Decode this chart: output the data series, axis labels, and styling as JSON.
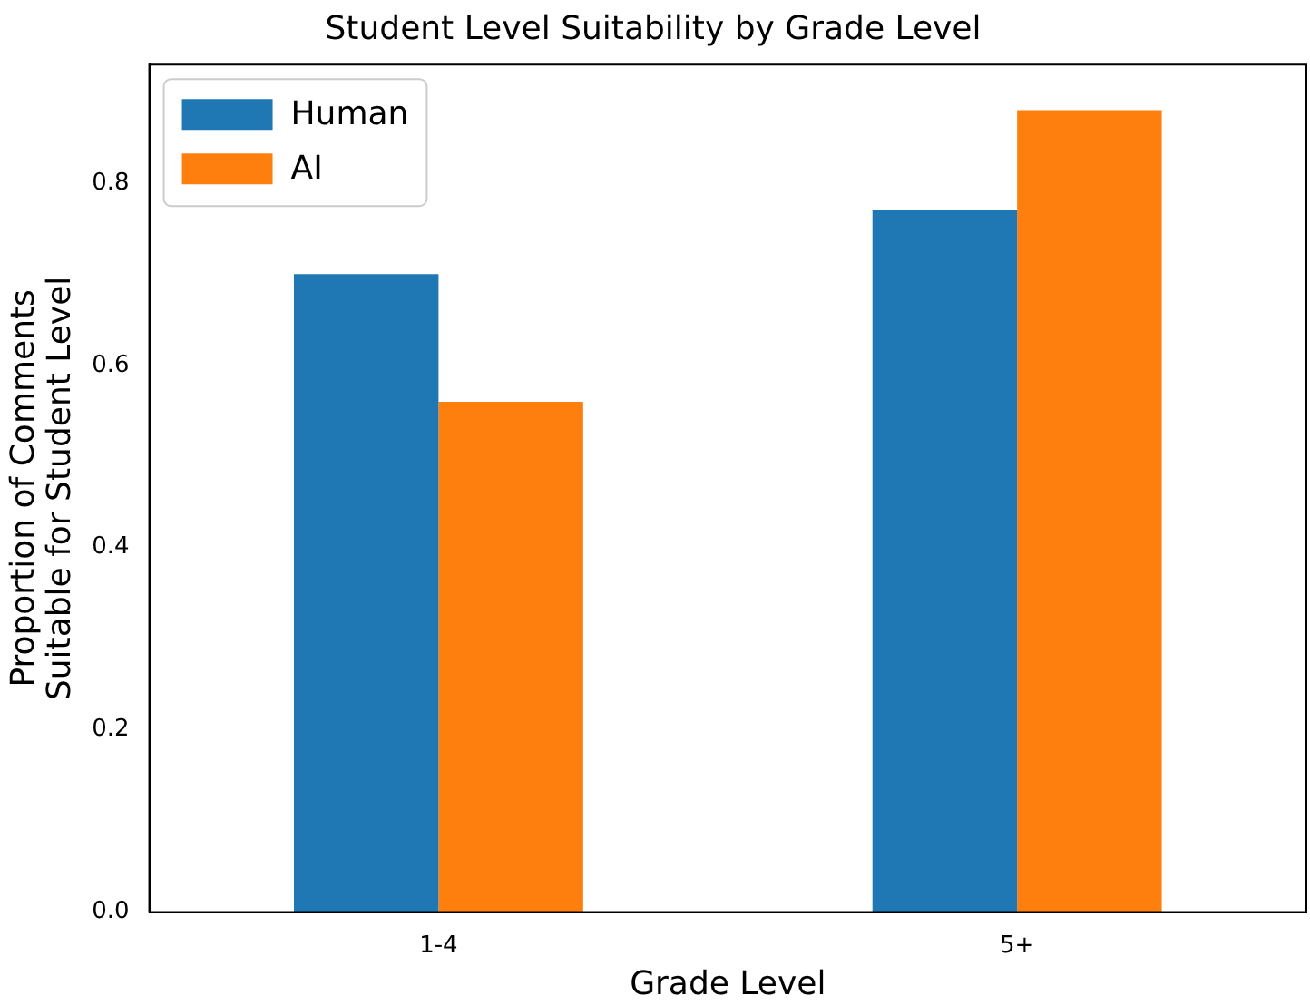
{
  "chart_data": {
    "type": "bar",
    "title": "Student Level Suitability by Grade Level",
    "xlabel": "Grade Level",
    "ylabel": "Proportion of Comments\nSuitable for Student Level",
    "categories": [
      "1-4",
      "5+"
    ],
    "series": [
      {
        "name": "Human",
        "color": "#1f77b4",
        "values": [
          0.7,
          0.77
        ]
      },
      {
        "name": "AI",
        "color": "#ff7f0e",
        "values": [
          0.56,
          0.88
        ]
      }
    ],
    "ylim": [
      0,
      0.93
    ],
    "yticks": [
      {
        "value": 0,
        "label": "0.0"
      },
      {
        "value": 0.2,
        "label": "0.2"
      },
      {
        "value": 0.4,
        "label": "0.4"
      },
      {
        "value": 0.6,
        "label": "0.6"
      },
      {
        "value": 0.8,
        "label": "0.8"
      }
    ],
    "grid": false,
    "legend": "top left"
  }
}
